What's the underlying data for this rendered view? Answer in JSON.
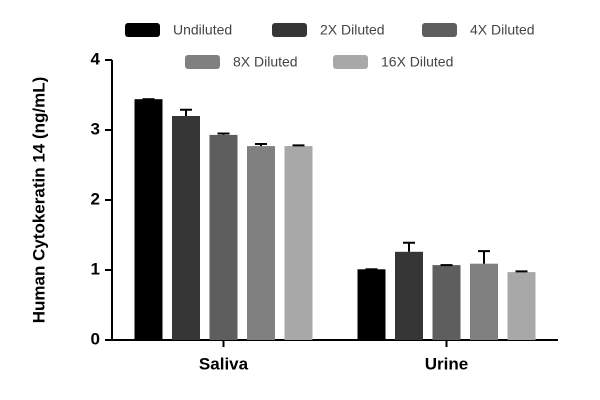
{
  "chart_data": {
    "type": "bar",
    "y_label": "Human Cytokeratin 14 (ng/mL)",
    "categories": [
      "Saliva",
      "Urine"
    ],
    "series": [
      {
        "name": "Undiluted",
        "color": "#000000",
        "values": [
          3.44,
          1.01
        ],
        "errors": [
          0,
          0
        ]
      },
      {
        "name": "2X Diluted",
        "color": "#363636",
        "values": [
          3.2,
          1.26
        ],
        "errors": [
          0.09,
          0.13
        ]
      },
      {
        "name": "4X Diluted",
        "color": "#5e5e5e",
        "values": [
          2.93,
          1.07
        ],
        "errors": [
          0.02,
          0
        ]
      },
      {
        "name": "8X Diluted",
        "color": "#808080",
        "values": [
          2.77,
          1.09
        ],
        "errors": [
          0.03,
          0.18
        ]
      },
      {
        "name": "16X Diluted",
        "color": "#a8a8a8",
        "values": [
          2.77,
          0.97
        ],
        "errors": [
          0.01,
          0.01
        ]
      }
    ],
    "ylim": [
      0,
      4
    ],
    "yticks": [
      0,
      1,
      2,
      3,
      4
    ],
    "legend": "top"
  }
}
